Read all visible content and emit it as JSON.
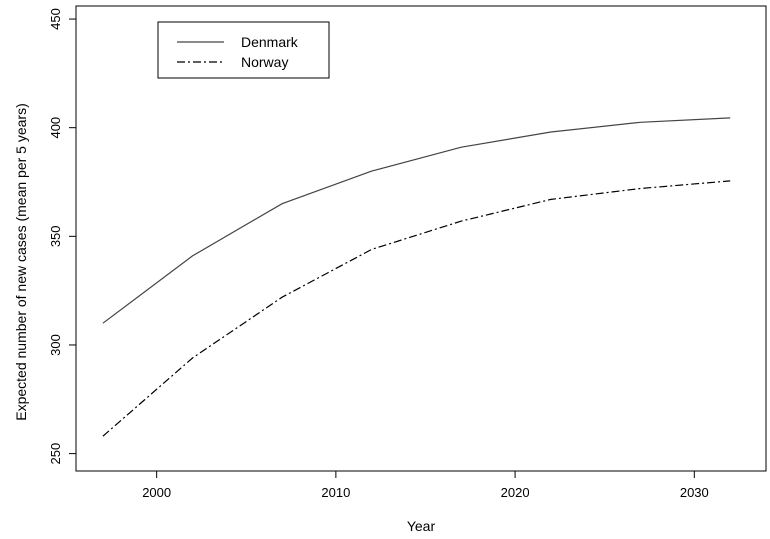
{
  "chart_data": {
    "type": "line",
    "title": "",
    "xlabel": "Year",
    "ylabel": "Expected number of new cases (mean per 5 years)",
    "xlim": [
      1995.5,
      2034
    ],
    "ylim": [
      242,
      456
    ],
    "xticks": [
      2000,
      2010,
      2020,
      2030
    ],
    "yticks": [
      250,
      300,
      350,
      400,
      450
    ],
    "grid": false,
    "legend": "top-left",
    "x": [
      1997,
      2002,
      2007,
      2012,
      2017,
      2022,
      2027,
      2032
    ],
    "series": [
      {
        "name": "Denmark",
        "style": "solid",
        "color": "#444444",
        "values": [
          310,
          341,
          365,
          380,
          391,
          398,
          402.5,
          404.5
        ]
      },
      {
        "name": "Norway",
        "style": "dashdot",
        "color": "#000000",
        "values": [
          258,
          294,
          322,
          344,
          357,
          367,
          372,
          375.5
        ]
      }
    ]
  }
}
